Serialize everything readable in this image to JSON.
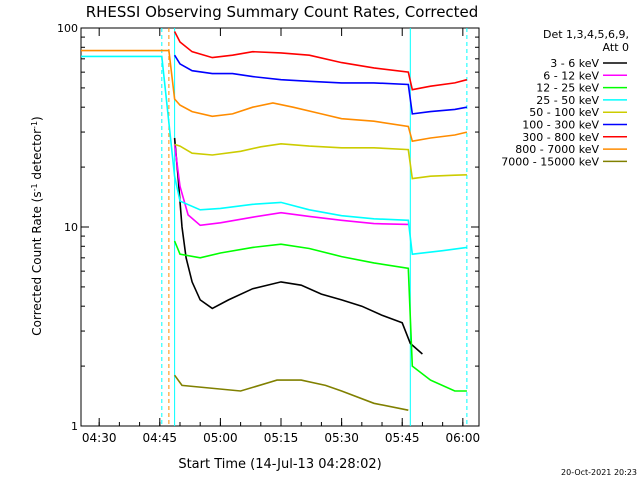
{
  "chart_data": {
    "type": "line",
    "title": "RHESSI Observing Summary Count Rates, Corrected",
    "xlabel": "Start Time (14-Jul-13 04:28:02)",
    "ylabel": "Corrected Count Rate (s⁻¹ detector⁻¹)",
    "ylabel_parts": {
      "main": "Corrected Count Rate (s",
      "sup1": "-1",
      "mid": " detector",
      "sup2": "-1",
      "end": ")"
    },
    "yscale": "log",
    "ylim": [
      1,
      100
    ],
    "y_ticks": [
      "1",
      "10",
      "100"
    ],
    "xlim": [
      "04:25:30",
      "06:04:00"
    ],
    "x_ticks": [
      "04:30",
      "04:45",
      "05:00",
      "05:15",
      "05:30",
      "05:45",
      "06:00"
    ],
    "legend_position": "top-right",
    "legend_header": [
      "Det 1,3,4,5,6,9,",
      "Att 0"
    ],
    "timestamp": "20-Oct-2021 20:23",
    "vertical_markers": [
      {
        "time": "04:45:30",
        "color": "#00ffff",
        "style": "dashed"
      },
      {
        "time": "04:47:15",
        "color": "#ff8c00",
        "style": "dashed"
      },
      {
        "time": "04:48:40",
        "color": "#00ffff",
        "style": "solid"
      },
      {
        "time": "05:47:00",
        "color": "#00ffff",
        "style": "solid"
      },
      {
        "time": "06:01:00",
        "color": "#00ffff",
        "style": "dashed"
      }
    ],
    "series": [
      {
        "name": "3 - 6 keV",
        "color": "#000000",
        "points": [
          [
            "04:48:40",
            28
          ],
          [
            "04:49:30",
            18
          ],
          [
            "04:50:30",
            10
          ],
          [
            "04:51:30",
            7
          ],
          [
            "04:53:00",
            5.3
          ],
          [
            "04:55:00",
            4.3
          ],
          [
            "04:58:00",
            3.9
          ],
          [
            "05:02:00",
            4.3
          ],
          [
            "05:08:00",
            4.9
          ],
          [
            "05:15:00",
            5.3
          ],
          [
            "05:20:00",
            5.1
          ],
          [
            "05:25:00",
            4.6
          ],
          [
            "05:30:00",
            4.3
          ],
          [
            "05:35:00",
            4.0
          ],
          [
            "05:40:00",
            3.6
          ],
          [
            "05:45:00",
            3.3
          ],
          [
            "05:47:00",
            2.6
          ],
          [
            "05:50:00",
            2.3
          ]
        ]
      },
      {
        "name": "6 - 12 keV",
        "color": "#ff00ff",
        "points": [
          [
            "04:48:40",
            26
          ],
          [
            "04:50:00",
            16
          ],
          [
            "04:52:00",
            11.5
          ],
          [
            "04:55:00",
            10.2
          ],
          [
            "05:00:00",
            10.5
          ],
          [
            "05:08:00",
            11.2
          ],
          [
            "05:15:00",
            11.8
          ],
          [
            "05:22:00",
            11.3
          ],
          [
            "05:30:00",
            10.8
          ],
          [
            "05:38:00",
            10.4
          ],
          [
            "05:46:30",
            10.3
          ]
        ]
      },
      {
        "name": "12 - 25 keV",
        "color": "#00ff00",
        "points": [
          [
            "04:48:40",
            8.5
          ],
          [
            "04:50:00",
            7.3
          ],
          [
            "04:55:00",
            7.0
          ],
          [
            "05:00:00",
            7.4
          ],
          [
            "05:08:00",
            7.9
          ],
          [
            "05:15:00",
            8.2
          ],
          [
            "05:22:00",
            7.8
          ],
          [
            "05:30:00",
            7.1
          ],
          [
            "05:38:00",
            6.6
          ],
          [
            "05:46:30",
            6.2
          ],
          [
            "05:47:30",
            2.0
          ],
          [
            "05:52:00",
            1.7
          ],
          [
            "05:58:00",
            1.5
          ],
          [
            "06:01:00",
            1.5
          ]
        ]
      },
      {
        "name": "25 - 50 keV",
        "color": "#00ffff",
        "points": [
          [
            "04:25:30",
            72
          ],
          [
            "04:45:30",
            72
          ],
          [
            "04:48:40",
            18
          ],
          [
            "04:50:00",
            13.5
          ],
          [
            "04:55:00",
            12.2
          ],
          [
            "05:00:00",
            12.4
          ],
          [
            "05:08:00",
            13.0
          ],
          [
            "05:15:00",
            13.3
          ],
          [
            "05:22:00",
            12.2
          ],
          [
            "05:30:00",
            11.4
          ],
          [
            "05:38:00",
            11.0
          ],
          [
            "05:46:30",
            10.8
          ],
          [
            "05:47:30",
            7.3
          ],
          [
            "05:55:00",
            7.6
          ],
          [
            "06:01:00",
            7.9
          ]
        ]
      },
      {
        "name": "50 - 100 keV",
        "color": "#cccc00",
        "points": [
          [
            "04:48:40",
            26
          ],
          [
            "04:50:00",
            25.5
          ],
          [
            "04:53:00",
            23.5
          ],
          [
            "04:58:00",
            23.0
          ],
          [
            "05:05:00",
            24.0
          ],
          [
            "05:10:00",
            25.3
          ],
          [
            "05:15:00",
            26.2
          ],
          [
            "05:22:00",
            25.5
          ],
          [
            "05:30:00",
            25.0
          ],
          [
            "05:38:00",
            25.0
          ],
          [
            "05:46:30",
            24.5
          ],
          [
            "05:47:30",
            17.5
          ],
          [
            "05:52:00",
            18.0
          ],
          [
            "05:58:00",
            18.2
          ],
          [
            "06:01:00",
            18.3
          ]
        ]
      },
      {
        "name": "100 - 300 keV",
        "color": "#0000ff",
        "points": [
          [
            "04:48:40",
            73
          ],
          [
            "04:50:00",
            66
          ],
          [
            "04:53:00",
            61
          ],
          [
            "04:58:00",
            59
          ],
          [
            "05:03:00",
            59
          ],
          [
            "05:08:00",
            57
          ],
          [
            "05:15:00",
            55
          ],
          [
            "05:22:00",
            54
          ],
          [
            "05:30:00",
            53
          ],
          [
            "05:38:00",
            53
          ],
          [
            "05:46:30",
            52
          ],
          [
            "05:47:30",
            37
          ],
          [
            "05:52:00",
            38
          ],
          [
            "05:58:00",
            39
          ],
          [
            "06:01:00",
            40
          ]
        ]
      },
      {
        "name": "300 - 800 keV",
        "color": "#ff0000",
        "points": [
          [
            "04:48:40",
            96
          ],
          [
            "04:50:00",
            85
          ],
          [
            "04:53:00",
            76
          ],
          [
            "04:58:00",
            71
          ],
          [
            "05:03:00",
            73
          ],
          [
            "05:08:00",
            76
          ],
          [
            "05:15:00",
            75
          ],
          [
            "05:22:00",
            73
          ],
          [
            "05:30:00",
            67
          ],
          [
            "05:38:00",
            63
          ],
          [
            "05:46:30",
            60
          ],
          [
            "05:47:30",
            49
          ],
          [
            "05:52:00",
            51
          ],
          [
            "05:58:00",
            53
          ],
          [
            "06:01:00",
            55
          ]
        ]
      },
      {
        "name": "800 - 7000 keV",
        "color": "#ff8c00",
        "points": [
          [
            "04:25:30",
            77
          ],
          [
            "04:47:15",
            77
          ],
          [
            "04:48:40",
            44
          ],
          [
            "04:50:00",
            41
          ],
          [
            "04:53:00",
            38
          ],
          [
            "04:58:00",
            36
          ],
          [
            "05:03:00",
            37
          ],
          [
            "05:08:00",
            40
          ],
          [
            "05:13:00",
            42
          ],
          [
            "05:18:00",
            40
          ],
          [
            "05:25:00",
            37
          ],
          [
            "05:30:00",
            35
          ],
          [
            "05:38:00",
            34
          ],
          [
            "05:46:30",
            32
          ],
          [
            "05:47:30",
            27
          ],
          [
            "05:52:00",
            28
          ],
          [
            "05:58:00",
            29
          ],
          [
            "06:01:00",
            30
          ]
        ]
      },
      {
        "name": "7000 - 15000 keV",
        "color": "#808000",
        "points": [
          [
            "04:48:40",
            1.8
          ],
          [
            "04:50:30",
            1.6
          ],
          [
            "05:05:00",
            1.5
          ],
          [
            "05:14:00",
            1.7
          ],
          [
            "05:20:00",
            1.7
          ],
          [
            "05:26:00",
            1.6
          ],
          [
            "05:30:00",
            1.5
          ],
          [
            "05:38:00",
            1.3
          ],
          [
            "05:46:30",
            1.2
          ]
        ]
      }
    ]
  }
}
